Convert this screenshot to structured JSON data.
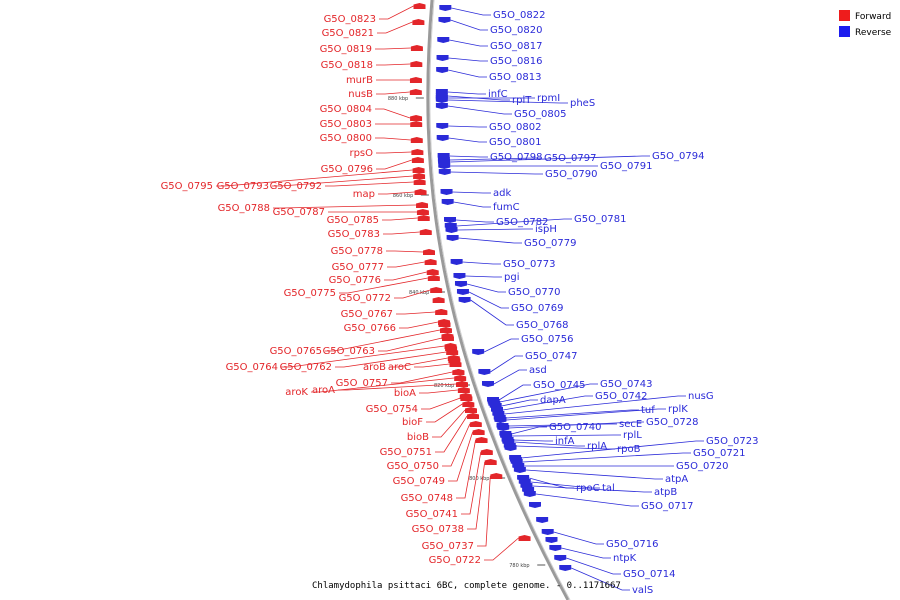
{
  "legend": {
    "items": [
      {
        "label": "Forward",
        "color": "#ee1c1c"
      },
      {
        "label": "Reverse",
        "color": "#1c1cee"
      }
    ]
  },
  "caption": "Chlamydophila psittaci 6BC, complete genome. - 0..1171667",
  "ticks": [
    "880 kbp",
    "860 kbp",
    "840 kbp",
    "820 kbp",
    "800 kbp",
    "780 kbp"
  ],
  "forward_genes": [
    "G5O_0823",
    "G5O_0821",
    "G5O_0819",
    "G5O_0818",
    "murB",
    "nusB",
    "G5O_0804",
    "G5O_0803",
    "G5O_0800",
    "rpsO",
    "G5O_0796",
    "G5O_0795",
    "G5O_0793",
    "G5O_0792",
    "map",
    "G5O_0788",
    "G5O_0787",
    "G5O_0785",
    "G5O_0783",
    "G5O_0778",
    "G5O_0777",
    "G5O_0776",
    "G5O_0775",
    "G5O_0772",
    "G5O_0767",
    "G5O_0766",
    "G5O_0765",
    "G5O_0763",
    "G5O_0764",
    "G5O_0762",
    "aroB",
    "aroC",
    "G5O_0757",
    "aroK",
    "aroA",
    "bioA",
    "G5O_0754",
    "bioF",
    "bioB",
    "G5O_0751",
    "G5O_0750",
    "G5O_0749",
    "G5O_0748",
    "G5O_0741",
    "G5O_0738",
    "G5O_0737",
    "G5O_0722"
  ],
  "reverse_genes": [
    "G5O_0822",
    "G5O_0820",
    "G5O_0817",
    "G5O_0816",
    "G5O_0813",
    "infC",
    "rplT",
    "rpmI",
    "pheS",
    "G5O_0805",
    "G5O_0802",
    "G5O_0801",
    "G5O_0798",
    "G5O_0797",
    "G5O_0794",
    "G5O_0791",
    "G5O_0790",
    "adk",
    "fumC",
    "G5O_0782",
    "G5O_0781",
    "ispH",
    "G5O_0779",
    "G5O_0773",
    "pgi",
    "G5O_0770",
    "G5O_0769",
    "G5O_0768",
    "G5O_0756",
    "G5O_0747",
    "asd",
    "G5O_0745",
    "G5O_0743",
    "dapA",
    "G5O_0742",
    "nusG",
    "tuf",
    "rplK",
    "secE",
    "G5O_0728",
    "G5O_0740",
    "rplL",
    "infA",
    "rplA",
    "rpoB",
    "G5O_0723",
    "G5O_0721",
    "G5O_0720",
    "atpA",
    "rpoC",
    "tal",
    "atpB",
    "G5O_0717",
    "G5O_0716",
    "ntpK",
    "G5O_0714",
    "valS"
  ]
}
